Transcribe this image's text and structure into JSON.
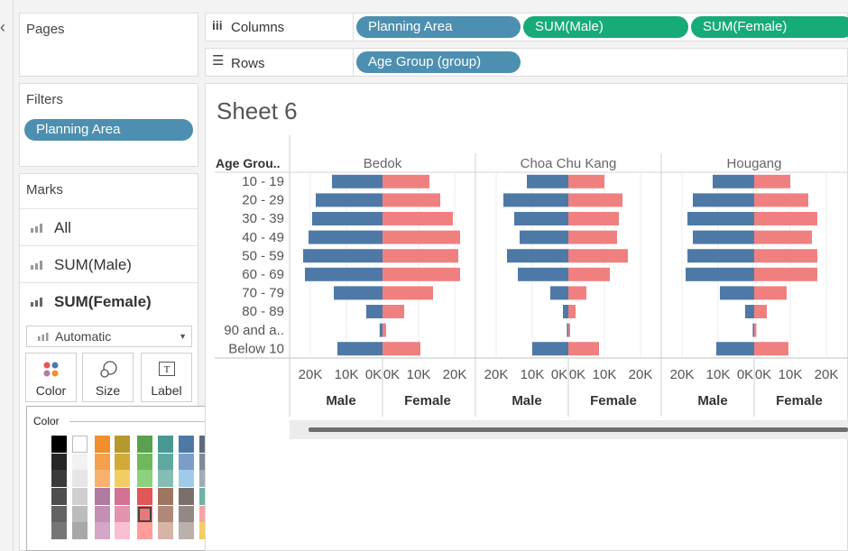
{
  "left_panel": {
    "collapse_glyph": "‹",
    "pages_title": "Pages",
    "filters_title": "Filters",
    "filter_pill": "Planning Area",
    "marks_title": "Marks",
    "marks_rows": [
      "All",
      "SUM(Male)",
      "SUM(Female)"
    ],
    "mark_type": "Automatic",
    "properties": [
      {
        "label": "Color",
        "icon": "color-dots-icon"
      },
      {
        "label": "Size",
        "icon": "size-icon"
      },
      {
        "label": "Label",
        "icon": "label-icon"
      }
    ]
  },
  "shelves": {
    "columns_label": "Columns",
    "rows_label": "Rows",
    "columns_pills": [
      "Planning Area",
      "SUM(Male)",
      "SUM(Female)"
    ],
    "rows_pills": [
      "Age Group (group)"
    ]
  },
  "color_popup": {
    "title": "Color",
    "selected": "#e8787a",
    "columns": [
      [
        "#000000",
        "#262626",
        "#3a3a3a",
        "#4e4e4e",
        "#636363",
        "#767676"
      ],
      [
        "#ffffff",
        "#f2f2f2",
        "#e6e6e6",
        "#cfcfcf",
        "#bcbcbc",
        "#a8a8a8"
      ],
      [
        "#f28e2b",
        "#f5a04c",
        "#f8b26e",
        "#b07aa1",
        "#c38fb5",
        "#d4a6c8"
      ],
      [
        "#b6992d",
        "#d1ab35",
        "#f1ce63",
        "#d37295",
        "#e493af",
        "#fabfd2"
      ],
      [
        "#59a14f",
        "#70b85d",
        "#8cd17d",
        "#e15759",
        "#e8787a",
        "#ff9d9a"
      ],
      [
        "#499894",
        "#5fa8a0",
        "#86bcb6",
        "#9d7660",
        "#b0887a",
        "#d7b5a6"
      ],
      [
        "#4e79a7",
        "#7a9ec8",
        "#a0cbe8",
        "#79706e",
        "#948884",
        "#bab0ac"
      ],
      [
        "#5f6b7a",
        "#7f8a96",
        "#a2abb4",
        "#6bb5a8",
        "#f4a3a6",
        "#f1ce63"
      ]
    ]
  },
  "sheet": {
    "title": "Sheet 6",
    "row_header": "Age Grou..",
    "row_labels": [
      "10 - 19",
      "20 - 29",
      "30 - 39",
      "40 - 49",
      "50 - 59",
      "60 - 69",
      "70 - 79",
      "80 - 89",
      "90 and a..",
      "Below 10"
    ],
    "male_tick_labels": [
      "20K",
      "10K",
      "0K"
    ],
    "female_tick_labels": [
      "0K",
      "10K",
      "20K"
    ],
    "male_axis_title": "Male",
    "female_axis_title": "Female"
  },
  "chart_data": {
    "type": "bar",
    "orientation": "horizontal",
    "male_color": "#4e79a7",
    "female_color": "#f08080",
    "xlim": [
      0,
      22000
    ],
    "categories": [
      "10 - 19",
      "20 - 29",
      "30 - 39",
      "40 - 49",
      "50 - 59",
      "60 - 69",
      "70 - 79",
      "80 - 89",
      "90 and a..",
      "Below 10"
    ],
    "panels": [
      {
        "name": "Bedok",
        "series": [
          {
            "name": "Male",
            "values": [
              14000,
              18500,
              19500,
              20500,
              22000,
              21500,
              13500,
              4500,
              800,
              12500
            ]
          },
          {
            "name": "Female",
            "values": [
              13000,
              16000,
              19500,
              21500,
              21000,
              21500,
              14000,
              6000,
              1000,
              10500
            ]
          }
        ]
      },
      {
        "name": "Choa Chu Kang",
        "series": [
          {
            "name": "Male",
            "values": [
              11500,
              18000,
              15000,
              13500,
              17000,
              14000,
              5000,
              1500,
              400,
              10000
            ]
          },
          {
            "name": "Female",
            "values": [
              10000,
              15000,
              14000,
              13500,
              16500,
              11500,
              5000,
              2000,
              500,
              8500
            ]
          }
        ]
      },
      {
        "name": "Hougang",
        "series": [
          {
            "name": "Male",
            "values": [
              11500,
              17000,
              18500,
              17000,
              18500,
              19000,
              9500,
              2500,
              400,
              10500
            ]
          },
          {
            "name": "Female",
            "values": [
              10000,
              15000,
              17500,
              16000,
              17500,
              17500,
              9000,
              3500,
              600,
              9500
            ]
          }
        ]
      }
    ]
  }
}
